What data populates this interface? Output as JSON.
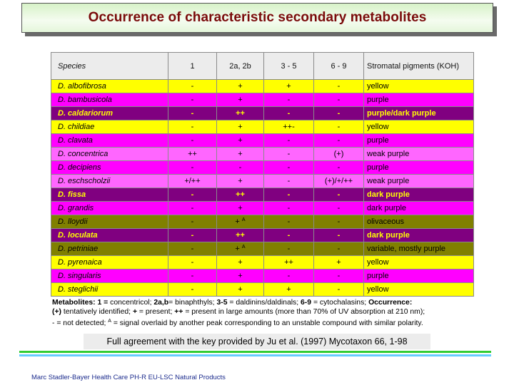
{
  "title": "Occurrence of characteristic secondary metabolites",
  "table": {
    "headers": [
      "Species",
      "1",
      "2a, 2b",
      "3 - 5",
      "6 - 9",
      "Stromatal pigments (KOH)"
    ],
    "rows": [
      {
        "color": "yellow",
        "species": "D. albofibrosa",
        "c1": "-",
        "c2": "+",
        "c2_sup": "",
        "c3": "+",
        "c4": "-",
        "pigment": "yellow"
      },
      {
        "color": "magenta",
        "species": "D. bambusicola",
        "c1": "-",
        "c2": "+",
        "c2_sup": "",
        "c3": "-",
        "c4": "-",
        "pigment": "purple"
      },
      {
        "color": "purple",
        "species": "D. caldariorum",
        "c1": "-",
        "c2": "++",
        "c2_sup": "",
        "c3": "-",
        "c4": "-",
        "pigment": "purple/dark purple"
      },
      {
        "color": "yellow",
        "species": "D. childiae",
        "c1": "-",
        "c2": "+",
        "c2_sup": "",
        "c3": "++-",
        "c4": "-",
        "pigment": "yellow"
      },
      {
        "color": "magenta",
        "species": "D. clavata",
        "c1": "-",
        "c2": "+",
        "c2_sup": "",
        "c3": "-",
        "c4": "-",
        "pigment": "purple"
      },
      {
        "color": "pink",
        "species": "D. concentrica",
        "c1": "++",
        "c2": "+",
        "c2_sup": "",
        "c3": "-",
        "c4": "(+)",
        "pigment": "weak purple"
      },
      {
        "color": "magenta",
        "species": "D. decipiens",
        "c1": "-",
        "c2": "-",
        "c2_sup": "",
        "c3": "-",
        "c4": "-",
        "pigment": "purple"
      },
      {
        "color": "pink",
        "species": "D. eschscholzii",
        "c1": "+/++",
        "c2": "+",
        "c2_sup": "",
        "c3": "-",
        "c4": "(+)/+/++",
        "pigment": "weak purple"
      },
      {
        "color": "purple",
        "species": "D. fissa",
        "c1": "-",
        "c2": "++",
        "c2_sup": "",
        "c3": "-",
        "c4": "-",
        "pigment": "dark purple"
      },
      {
        "color": "magenta",
        "species": "D. grandis",
        "c1": "-",
        "c2": "+",
        "c2_sup": "",
        "c3": "-",
        "c4": "-",
        "pigment": "dark purple"
      },
      {
        "color": "olive",
        "species": "D. lloydii",
        "c1": "-",
        "c2": "+",
        "c2_sup": "A",
        "c3": "-",
        "c4": "-",
        "pigment": "olivaceous"
      },
      {
        "color": "purple",
        "species": "D. loculata",
        "c1": "-",
        "c2": "++",
        "c2_sup": "",
        "c3": "-",
        "c4": "-",
        "pigment": "dark purple"
      },
      {
        "color": "olive",
        "species": "D. petriniae",
        "c1": "-",
        "c2": "+",
        "c2_sup": "A",
        "c3": "-",
        "c4": "-",
        "pigment": "variable, mostly purple"
      },
      {
        "color": "yellow",
        "species": "D. pyrenaica",
        "c1": "-",
        "c2": "+",
        "c2_sup": "",
        "c3": "++",
        "c4": "+",
        "pigment": "yellow"
      },
      {
        "color": "magenta",
        "species": "D. singularis",
        "c1": "-",
        "c2": "+",
        "c2_sup": "",
        "c3": "-",
        "c4": "-",
        "pigment": "purple"
      },
      {
        "color": "yellow",
        "species": "D. steglichii",
        "c1": "-",
        "c2": "+",
        "c2_sup": "",
        "c3": "+",
        "c4": "-",
        "pigment": "yellow"
      }
    ]
  },
  "legend": {
    "line1": [
      {
        "t": "Metabolites: 1 = ",
        "b": true
      },
      {
        "t": "concentricol; ",
        "b": false
      },
      {
        "t": "2a,b",
        "b": true
      },
      {
        "t": "= binaphthyls; ",
        "b": false
      },
      {
        "t": "3-5",
        "b": true
      },
      {
        "t": " = daldinins/daldinals; ",
        "b": false
      },
      {
        "t": "6-9",
        "b": true
      },
      {
        "t": " = cytochalasins; ",
        "b": false
      },
      {
        "t": "Occurrence:",
        "b": true
      }
    ],
    "line2": [
      {
        "t": "(+)",
        "b": true
      },
      {
        "t": " tentatively identified; ",
        "b": false
      },
      {
        "t": "+",
        "b": true
      },
      {
        "t": " = present; ",
        "b": false
      },
      {
        "t": "++",
        "b": true
      },
      {
        "t": " = present in large amounts (more than 70% of UV absorption at 210 nm);",
        "b": false
      }
    ],
    "line3_pre": " - = not detected; ",
    "line3_sup": "A",
    "line3_post": " = signal overlaid by another peak corresponding to an unstable compound with similar polarity."
  },
  "key_note": "Full agreement with the key provided by Ju et al. (1997) Mycotaxon 66, 1-98",
  "footer": "Marc Stadler-Bayer Health Care PH-R EU-LSC Natural Products",
  "colors": {
    "yellow": "#ffff00",
    "magenta": "#ff00ff",
    "purple": "#800080",
    "pink": "#ff66ff",
    "olive": "#808000",
    "title": "#7a0a0a",
    "green_line": "#33cc33",
    "cyan_line": "#66ccff"
  }
}
